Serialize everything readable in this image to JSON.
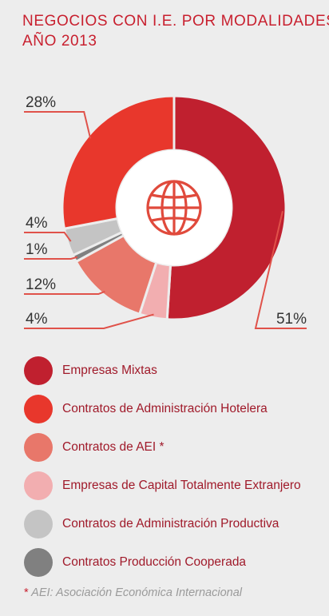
{
  "header": {
    "title_line1": "NEGOCIOS CON I.E. POR MODALIDADES",
    "title_line2": "AÑO 2013"
  },
  "chart_data": {
    "type": "pie",
    "subtype": "donut",
    "center_icon": "globe-icon",
    "slices": [
      {
        "name": "Empresas Mixtas",
        "value": 51,
        "label": "51%",
        "color": "#c0202f"
      },
      {
        "name": "Contratos de Administración Hotelera",
        "value": 28,
        "label": "28%",
        "color": "#e8372c"
      },
      {
        "name": "Contratos de AEI *",
        "value": 12,
        "label": "12%",
        "color": "#e8776a"
      },
      {
        "name": "Empresas de Capital Totalmente Extranjero",
        "value": 4,
        "label": "4%",
        "color": "#f2aeb0"
      },
      {
        "name": "Contratos de Administración Productiva",
        "value": 4,
        "label": "4%",
        "color": "#c4c4c4"
      },
      {
        "name": "Contratos Producción Cooperada",
        "value": 1,
        "label": "1%",
        "color": "#808080"
      }
    ],
    "legend_position": "bottom"
  },
  "legend": [
    {
      "label": "Empresas Mixtas",
      "color": "#c0202f"
    },
    {
      "label": "Contratos de Administración Hotelera",
      "color": "#e8372c"
    },
    {
      "label": "Contratos de AEI *",
      "color": "#e8776a"
    },
    {
      "label": "Empresas de Capital Totalmente Extranjero",
      "color": "#f2aeb0"
    },
    {
      "label": "Contratos de Administración Productiva",
      "color": "#c4c4c4"
    },
    {
      "label": "Contratos Producción Cooperada",
      "color": "#808080"
    }
  ],
  "footnote": {
    "star": "*",
    "text": "AEI: Asociación Económica Internacional"
  }
}
